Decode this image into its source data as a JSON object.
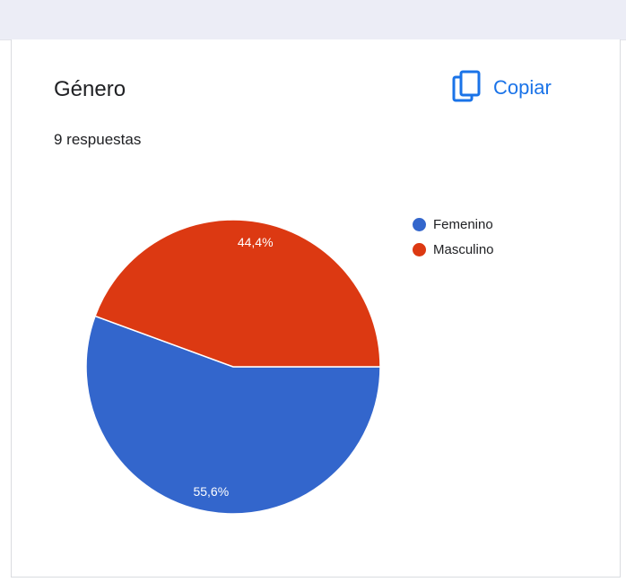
{
  "question": {
    "title": "Género",
    "responses": "9 respuestas"
  },
  "copy_button": {
    "label": "Copiar",
    "icon": "copy-icon"
  },
  "colors": {
    "femenino": "#3366cc",
    "masculino": "#dc3912",
    "accent": "#1a73e8"
  },
  "chart_data": {
    "type": "pie",
    "title": "",
    "slices": [
      {
        "label": "Femenino",
        "value": 55.6,
        "display": "55,6%",
        "color": "#3366cc"
      },
      {
        "label": "Masculino",
        "value": 44.4,
        "display": "44,4%",
        "color": "#dc3912"
      }
    ],
    "legend_position": "right"
  }
}
